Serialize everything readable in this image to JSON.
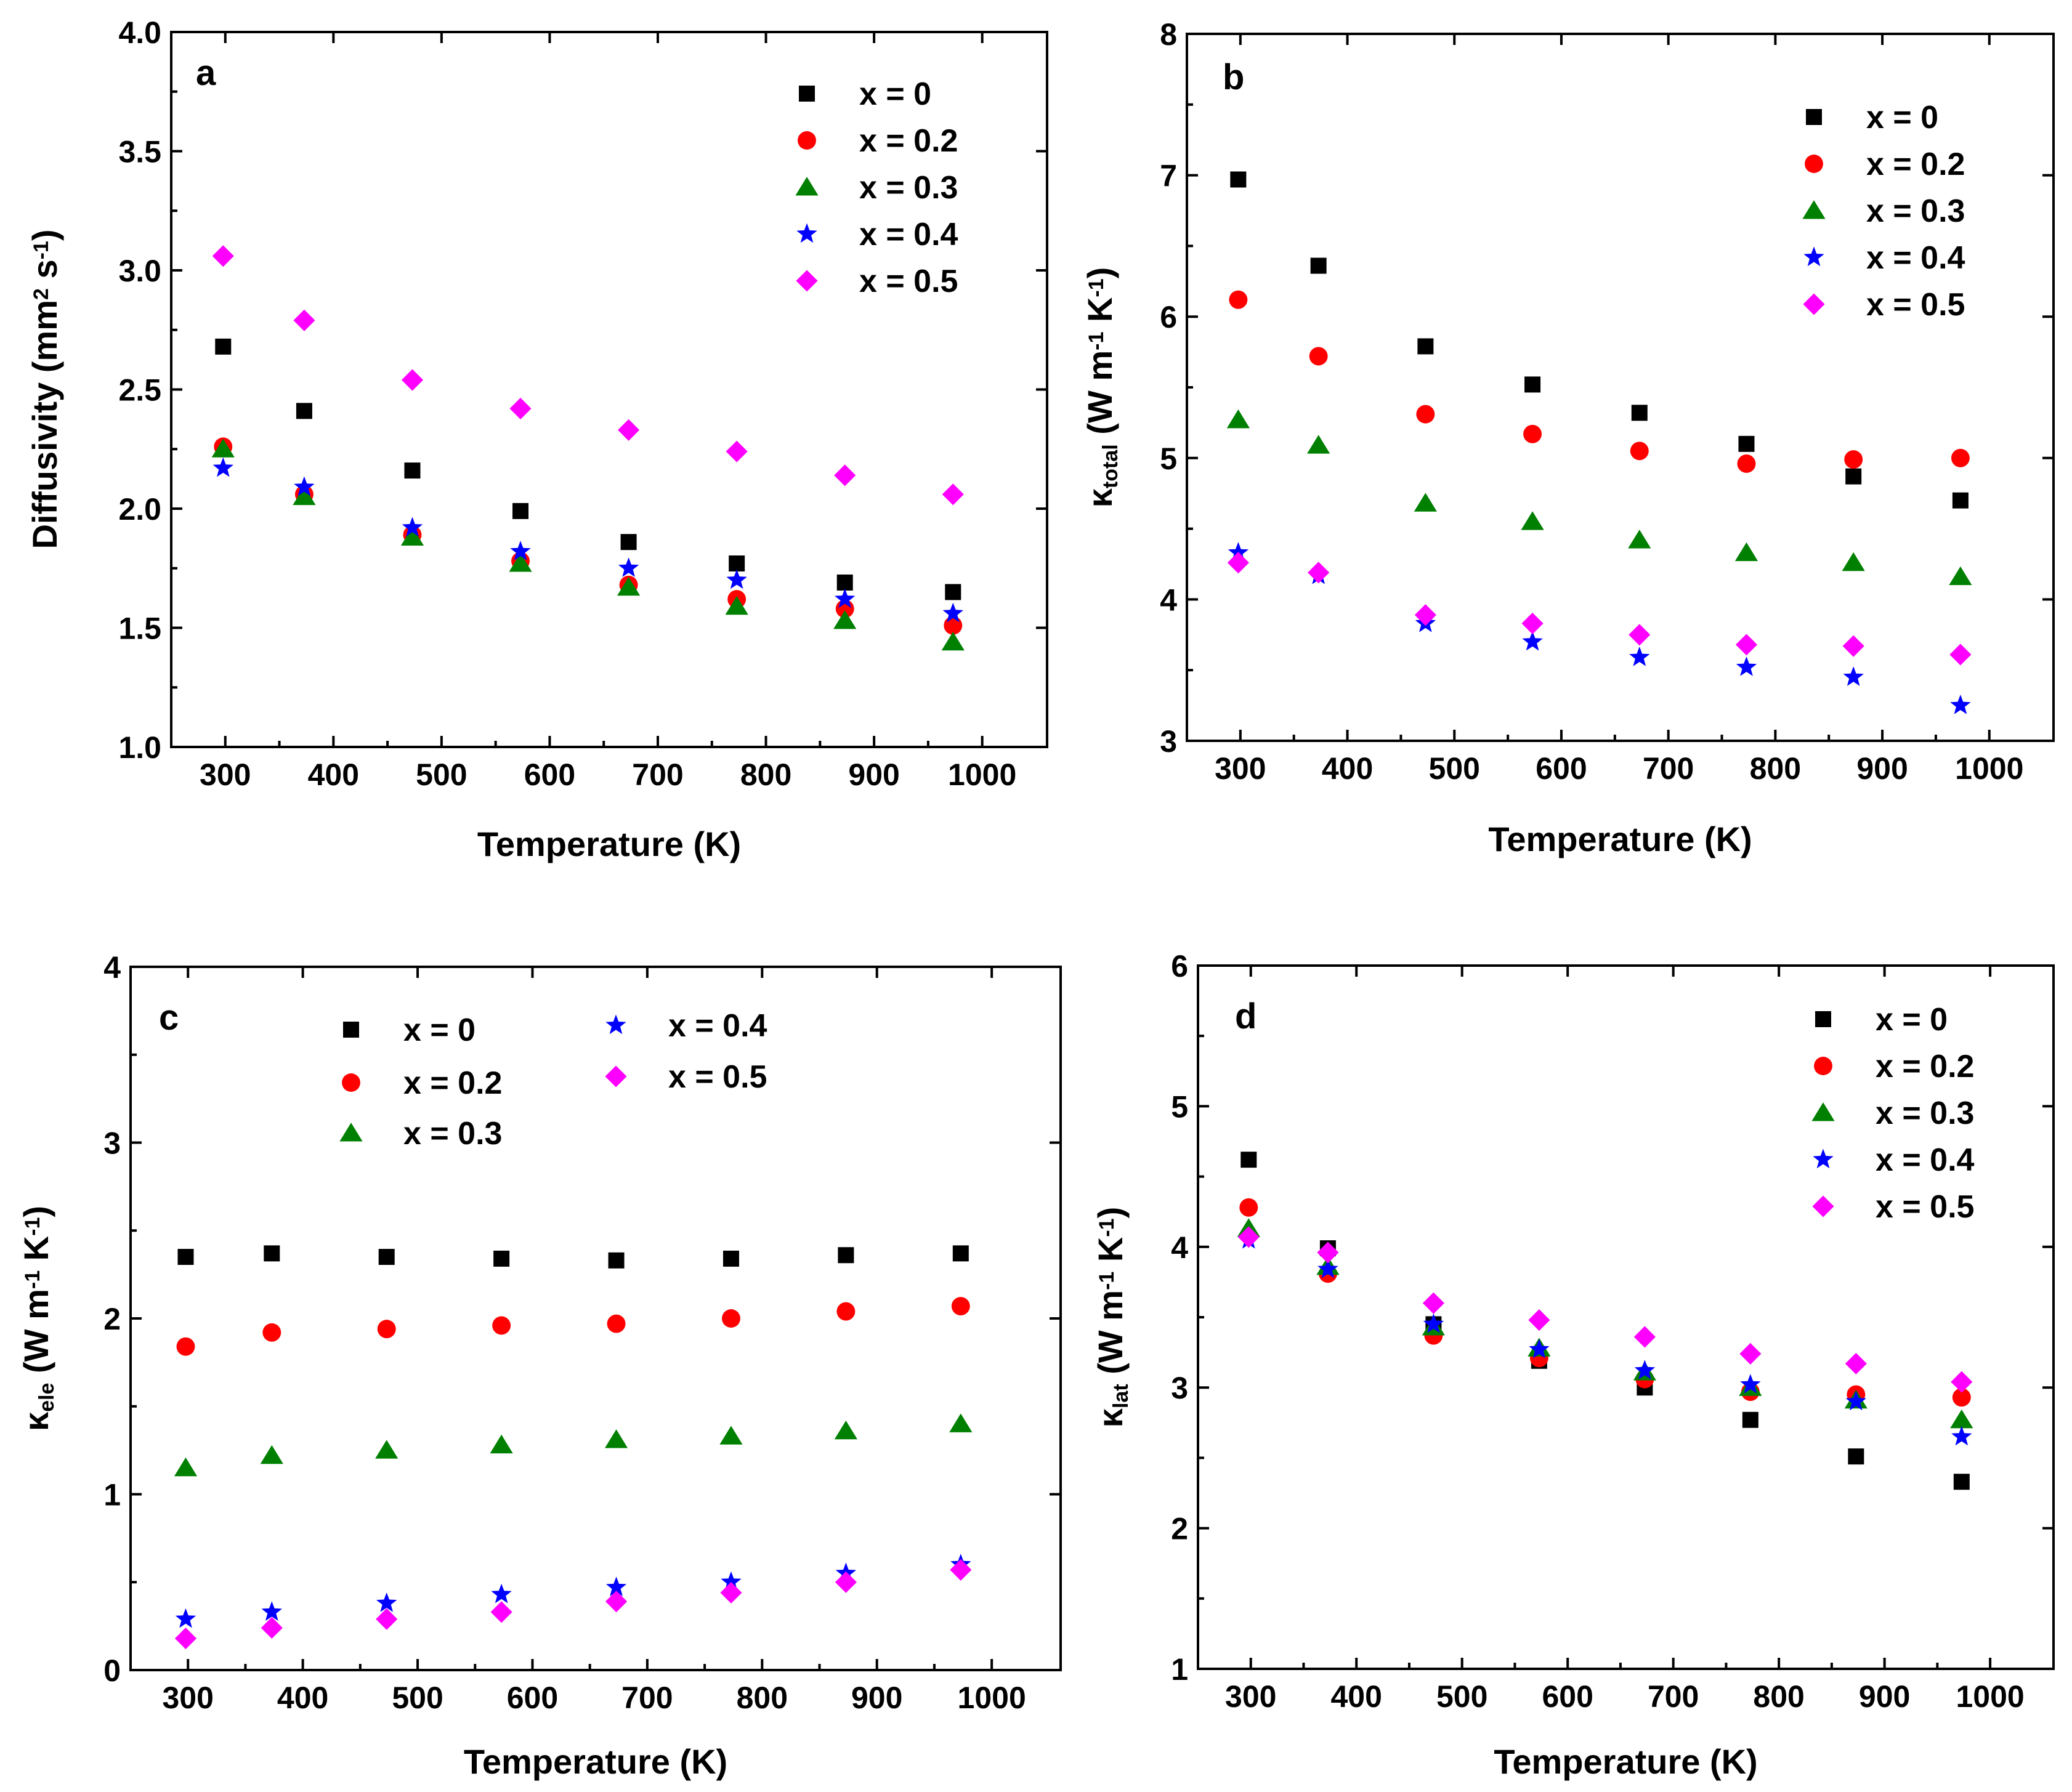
{
  "colors": {
    "x0": "#000000",
    "x02": "#ff0000",
    "x03": "#008000",
    "x04": "#0000ff",
    "x05": "#ff00ff"
  },
  "chart_data": [
    {
      "panel": "a",
      "type": "scatter",
      "xlabel": "Temperature (K)",
      "ylabel": "Diffusivity (mm² s⁻¹)",
      "xlim": [
        250,
        1060
      ],
      "ylim": [
        1.0,
        4.0
      ],
      "xticks": [
        300,
        400,
        500,
        600,
        700,
        800,
        900,
        1000
      ],
      "yticks": [
        1.0,
        1.5,
        2.0,
        2.5,
        3.0,
        3.5,
        4.0
      ],
      "ytick_labels": [
        "1.0",
        "1.5",
        "2.0",
        "2.5",
        "3.0",
        "3.5",
        "4.0"
      ],
      "legend_position": "top-right",
      "x": [
        298,
        373,
        473,
        573,
        673,
        773,
        873,
        973
      ],
      "series": [
        {
          "name": "x = 0",
          "marker": "square",
          "color": "#000000",
          "values": [
            2.68,
            2.41,
            2.16,
            1.99,
            1.86,
            1.77,
            1.69,
            1.65
          ]
        },
        {
          "name": "x = 0.2",
          "marker": "circle",
          "color": "#ff0000",
          "values": [
            2.26,
            2.06,
            1.89,
            1.78,
            1.68,
            1.62,
            1.58,
            1.51
          ]
        },
        {
          "name": "x = 0.3",
          "marker": "triangle",
          "color": "#008000",
          "values": [
            2.25,
            2.05,
            1.88,
            1.77,
            1.67,
            1.59,
            1.53,
            1.44
          ]
        },
        {
          "name": "x = 0.4",
          "marker": "star",
          "color": "#0000ff",
          "values": [
            2.17,
            2.09,
            1.92,
            1.82,
            1.75,
            1.7,
            1.62,
            1.56
          ]
        },
        {
          "name": "x = 0.5",
          "marker": "diamond",
          "color": "#ff00ff",
          "values": [
            3.06,
            2.79,
            2.54,
            2.42,
            2.33,
            2.24,
            2.14,
            2.06
          ]
        }
      ]
    },
    {
      "panel": "b",
      "type": "scatter",
      "xlabel": "Temperature (K)",
      "ylabel": "κtotal (W m⁻¹ K⁻¹)",
      "xlim": [
        250,
        1060
      ],
      "ylim": [
        3,
        8
      ],
      "xticks": [
        300,
        400,
        500,
        600,
        700,
        800,
        900,
        1000
      ],
      "yticks": [
        3,
        4,
        5,
        6,
        7,
        8
      ],
      "ytick_labels": [
        "3",
        "4",
        "5",
        "6",
        "7",
        "8"
      ],
      "legend_position": "top-right",
      "x": [
        298,
        373,
        473,
        573,
        673,
        773,
        873,
        973
      ],
      "series": [
        {
          "name": "x = 0",
          "marker": "square",
          "color": "#000000",
          "values": [
            6.97,
            6.36,
            5.79,
            5.52,
            5.32,
            5.1,
            4.87,
            4.7
          ]
        },
        {
          "name": "x = 0.2",
          "marker": "circle",
          "color": "#ff0000",
          "values": [
            6.12,
            5.72,
            5.31,
            5.17,
            5.05,
            4.96,
            4.99,
            5.0
          ]
        },
        {
          "name": "x = 0.3",
          "marker": "triangle",
          "color": "#008000",
          "values": [
            5.27,
            5.09,
            4.68,
            4.55,
            4.42,
            4.33,
            4.26,
            4.16
          ]
        },
        {
          "name": "x = 0.4",
          "marker": "star",
          "color": "#0000ff",
          "values": [
            4.33,
            4.17,
            3.83,
            3.7,
            3.59,
            3.52,
            3.45,
            3.25
          ]
        },
        {
          "name": "x = 0.5",
          "marker": "diamond",
          "color": "#ff00ff",
          "values": [
            4.26,
            4.19,
            3.89,
            3.83,
            3.75,
            3.68,
            3.67,
            3.61
          ]
        }
      ]
    },
    {
      "panel": "c",
      "type": "scatter",
      "xlabel": "Temperature (K)",
      "ylabel": "κele (W m⁻¹ K⁻¹)",
      "xlim": [
        250,
        1060
      ],
      "ylim": [
        0,
        4
      ],
      "xticks": [
        300,
        400,
        500,
        600,
        700,
        800,
        900,
        1000
      ],
      "yticks": [
        0,
        1,
        2,
        3,
        4
      ],
      "ytick_labels": [
        "0",
        "1",
        "2",
        "3",
        "4"
      ],
      "legend_position": "top (two columns)",
      "x": [
        298,
        373,
        473,
        573,
        673,
        773,
        873,
        973
      ],
      "series": [
        {
          "name": "x = 0",
          "marker": "square",
          "color": "#000000",
          "values": [
            2.35,
            2.37,
            2.35,
            2.34,
            2.33,
            2.34,
            2.36,
            2.37
          ]
        },
        {
          "name": "x = 0.2",
          "marker": "circle",
          "color": "#ff0000",
          "values": [
            1.84,
            1.92,
            1.94,
            1.96,
            1.97,
            2.0,
            2.04,
            2.07
          ]
        },
        {
          "name": "x = 0.3",
          "marker": "triangle",
          "color": "#008000",
          "values": [
            1.15,
            1.22,
            1.25,
            1.28,
            1.31,
            1.33,
            1.36,
            1.4
          ]
        },
        {
          "name": "x = 0.4",
          "marker": "star",
          "color": "#0000ff",
          "values": [
            0.29,
            0.33,
            0.38,
            0.43,
            0.47,
            0.5,
            0.55,
            0.6
          ]
        },
        {
          "name": "x = 0.5",
          "marker": "diamond",
          "color": "#ff00ff",
          "values": [
            0.18,
            0.24,
            0.29,
            0.33,
            0.39,
            0.44,
            0.5,
            0.57
          ]
        }
      ]
    },
    {
      "panel": "d",
      "type": "scatter",
      "xlabel": "Temperature (K)",
      "ylabel": "κlat (W m⁻¹ K⁻¹)",
      "xlim": [
        250,
        1060
      ],
      "ylim": [
        1,
        6
      ],
      "xticks": [
        300,
        400,
        500,
        600,
        700,
        800,
        900,
        1000
      ],
      "yticks": [
        1,
        2,
        3,
        4,
        5,
        6
      ],
      "ytick_labels": [
        "1",
        "2",
        "3",
        "4",
        "5",
        "6"
      ],
      "legend_position": "top-right",
      "x": [
        298,
        373,
        473,
        573,
        673,
        773,
        873,
        973
      ],
      "series": [
        {
          "name": "x = 0",
          "marker": "square",
          "color": "#000000",
          "values": [
            4.62,
            3.99,
            3.45,
            3.19,
            3.0,
            2.77,
            2.51,
            2.33
          ]
        },
        {
          "name": "x = 0.2",
          "marker": "circle",
          "color": "#ff0000",
          "values": [
            4.28,
            3.81,
            3.37,
            3.21,
            3.06,
            2.97,
            2.95,
            2.93
          ]
        },
        {
          "name": "x = 0.3",
          "marker": "triangle",
          "color": "#008000",
          "values": [
            4.13,
            3.86,
            3.43,
            3.28,
            3.11,
            3.0,
            2.91,
            2.77
          ]
        },
        {
          "name": "x = 0.4",
          "marker": "star",
          "color": "#0000ff",
          "values": [
            4.05,
            3.84,
            3.45,
            3.27,
            3.12,
            3.02,
            2.9,
            2.65
          ]
        },
        {
          "name": "x = 0.5",
          "marker": "diamond",
          "color": "#ff00ff",
          "values": [
            4.07,
            3.96,
            3.6,
            3.48,
            3.36,
            3.24,
            3.17,
            3.04
          ]
        }
      ]
    }
  ]
}
